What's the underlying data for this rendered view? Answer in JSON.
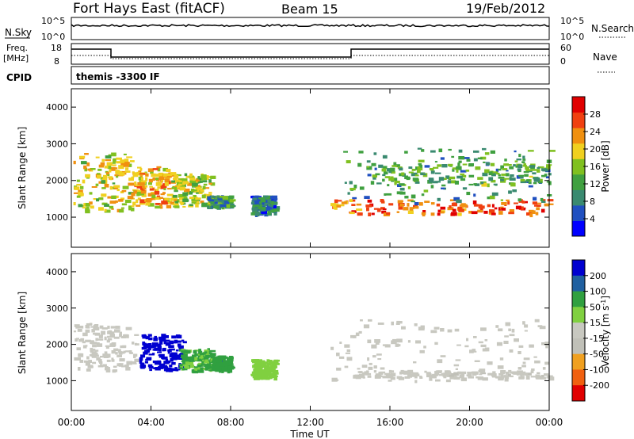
{
  "header": {
    "title": "Fort Hays East (fitACF)",
    "beam": "Beam 15",
    "date": "19/Feb/2012"
  },
  "panels": {
    "nsky_label": "N.Sky",
    "nsearch_label": "N.Search",
    "noise_ticks": [
      "10^5",
      "10^0"
    ],
    "freq_label": "Freq.",
    "freq_unit": "[MHz]",
    "freq_ticks": [
      "18",
      "8"
    ],
    "nave_label": "Nave",
    "nave_ticks": [
      "60",
      "0"
    ],
    "cpid_label": "CPID",
    "cpid_text": "themis -3300 IF"
  },
  "x_axis": {
    "label": "Time UT",
    "ticks": [
      "00:00",
      "04:00",
      "08:00",
      "12:00",
      "16:00",
      "20:00",
      "00:00"
    ]
  },
  "colors": {
    "power": [
      "#0000ff",
      "#2050c0",
      "#3a8a70",
      "#40a040",
      "#80c020",
      "#f0d020",
      "#f09010",
      "#f04010",
      "#e00000"
    ],
    "velocity": [
      "#0000d0",
      "#2060a0",
      "#30a040",
      "#80d040",
      "#c8c8c0",
      "#c0c0b8",
      "#f0a020",
      "#f06010",
      "#e00000"
    ]
  },
  "chart_data": [
    {
      "type": "heatmap",
      "title": "",
      "xlabel": "Time UT",
      "ylabel": "Slant Range [km]",
      "x_range_hours": [
        0,
        24
      ],
      "ylim": [
        180,
        4500
      ],
      "yticks": [
        1000,
        2000,
        3000,
        4000
      ],
      "colorbar": {
        "label": "Power [dB]",
        "ticks": [
          "4",
          "8",
          "12",
          "16",
          "20",
          "24",
          "28"
        ],
        "range": [
          0,
          30
        ]
      },
      "regions": [
        {
          "t0": 0.1,
          "t1": 3.0,
          "r0": 1200,
          "r1": 2800,
          "value": 18
        },
        {
          "t0": 3.0,
          "t1": 5.0,
          "r0": 1300,
          "r1": 2400,
          "value": 20
        },
        {
          "t0": 5.0,
          "t1": 7.0,
          "r0": 1300,
          "r1": 2200,
          "value": 16
        },
        {
          "t0": 6.8,
          "t1": 8.0,
          "r0": 1300,
          "r1": 1600,
          "value": 10
        },
        {
          "t0": 9.0,
          "t1": 10.2,
          "r0": 1100,
          "r1": 1600,
          "value": 8
        },
        {
          "t0": 13.0,
          "t1": 24.0,
          "r0": 1100,
          "r1": 1500,
          "value": 24
        },
        {
          "t0": 13.5,
          "t1": 24.0,
          "r0": 1400,
          "r1": 2900,
          "value": 10
        },
        {
          "t0": 15.0,
          "t1": 24.0,
          "r0": 1900,
          "r1": 2500,
          "value": 12
        }
      ]
    },
    {
      "type": "heatmap",
      "title": "",
      "xlabel": "Time UT",
      "ylabel": "Slant Range [km]",
      "x_range_hours": [
        0,
        24
      ],
      "ylim": [
        180,
        4500
      ],
      "yticks": [
        1000,
        2000,
        3000,
        4000
      ],
      "colorbar": {
        "label": "Velocity [m s^-1]",
        "ticks": [
          "200",
          "100",
          "50",
          "15",
          "-15",
          "-50",
          "-100",
          "-200"
        ],
        "range": [
          -250,
          250
        ]
      },
      "regions": [
        {
          "t0": 0.1,
          "t1": 3.2,
          "r0": 1300,
          "r1": 2600,
          "value": 0
        },
        {
          "t0": 3.4,
          "t1": 5.6,
          "r0": 1300,
          "r1": 2300,
          "value": 220
        },
        {
          "t0": 5.4,
          "t1": 7.0,
          "r0": 1300,
          "r1": 1900,
          "value": 90
        },
        {
          "t0": 7.0,
          "t1": 8.0,
          "r0": 1300,
          "r1": 1700,
          "value": 120
        },
        {
          "t0": 9.0,
          "t1": 10.2,
          "r0": 1100,
          "r1": 1600,
          "value": 60
        },
        {
          "t0": 13.0,
          "t1": 24.0,
          "r0": 1000,
          "r1": 2700,
          "value": 0
        },
        {
          "t0": 14.0,
          "t1": 24.0,
          "r0": 1100,
          "r1": 1300,
          "value": -10
        }
      ]
    }
  ]
}
